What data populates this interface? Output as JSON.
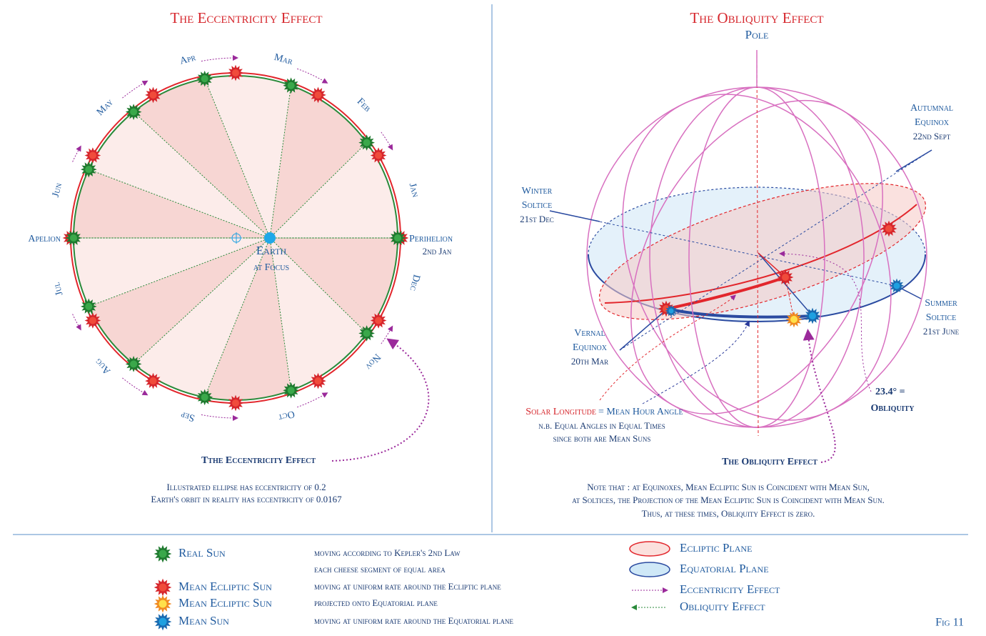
{
  "left": {
    "title": "The Eccentricity Effect",
    "months": [
      "Apr",
      "Mar",
      "Feb",
      "Jan",
      "Dec",
      "Nov",
      "Oct",
      "Sep",
      "Aug",
      "Jul",
      "Jun",
      "May"
    ],
    "apelion": "Apelion",
    "perihelion": "Perihelion",
    "perihelion_date": "2nd Jan",
    "earth": "Earth",
    "earth_sub": "at Focus",
    "annotation": "Tthe Eccentricity Effect",
    "notes": [
      "Illustrated ellipse has eccentricity of 0.2",
      "Earth's orbit in reality has eccentricity of 0.0167"
    ]
  },
  "right": {
    "title": "The Obliquity Effect",
    "pole": "Pole",
    "autumnal": [
      "Autumnal",
      "Equinox",
      "22nd Sept"
    ],
    "winter": [
      "Winter",
      "Soltice",
      "21st Dec"
    ],
    "vernal": [
      "Vernal",
      "Equinox",
      "20th Mar"
    ],
    "summer": [
      "Summer",
      "Soltice",
      "21st June"
    ],
    "obliquity": [
      "23.4° =",
      "Obliquity"
    ],
    "solar_longitude": "Solar Longitude",
    "hour_angle": "= Mean Hour Angle",
    "nb": [
      "n.b. Equal Angles in Equal Times",
      "since both are Mean Suns"
    ],
    "annotation": "The Obliquity Effect",
    "notes": [
      "Note that : at Equinoxes, Mean Ecliptic Sun is Coincident with Mean Sun,",
      "at Soltices, the Projection of the Mean Ecliptic Sun is Coincident with Mean Sun.",
      "Thus, at these times, Obliquity Effect is zero."
    ]
  },
  "legend": {
    "items": [
      {
        "label": "Real Sun",
        "description": [
          "moving according to Kepler's 2nd Law",
          "each cheese segment of equal area"
        ]
      },
      {
        "label": "Mean Ecliptic Sun",
        "description": [
          "moving at uniform rate around the Ecliptic plane"
        ]
      },
      {
        "label": "Mean Ecliptic Sun",
        "description": [
          "projected onto Equatorial plane"
        ]
      },
      {
        "label": "Mean Sun",
        "description": [
          "moving at uniform rate around the Equatorial plane"
        ]
      }
    ],
    "planes": [
      "Ecliptic Plane",
      "Equatorial Plane",
      "Eccentricity Effect",
      "Obliquity Effect"
    ],
    "figure": "Fig 11"
  }
}
